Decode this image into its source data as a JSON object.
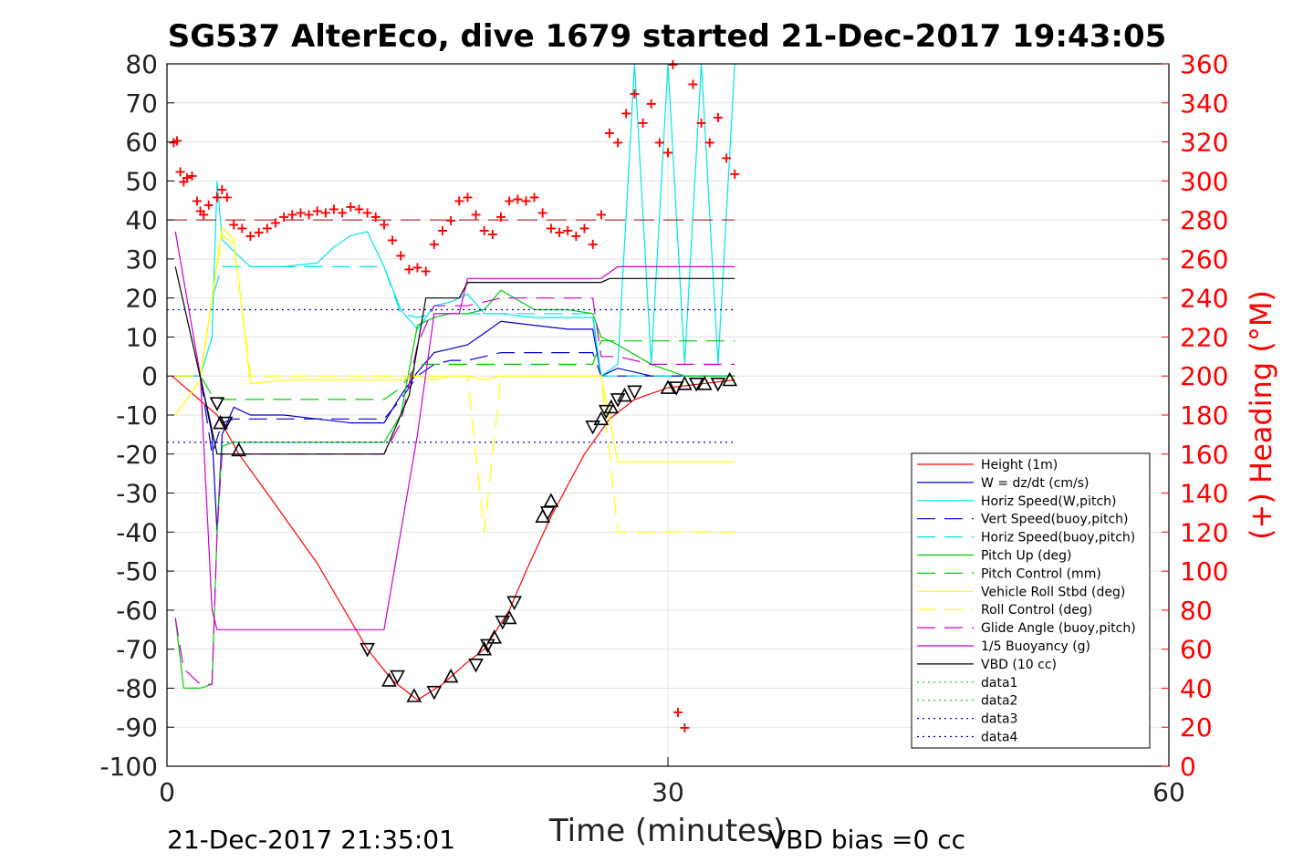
{
  "chart_data": {
    "type": "line",
    "title": "SG537 AlterEco, dive 1679 started 21-Dec-2017 19:43:05",
    "xlabel": "Time (minutes)",
    "ylabel_right": "(+) Heading (°M)",
    "xlim": [
      0,
      60
    ],
    "ylim": [
      -100,
      80
    ],
    "ylim_right": [
      0,
      360
    ],
    "x_ticks": [
      "0",
      "30",
      "60"
    ],
    "y_ticks": [
      "-100",
      "-90",
      "-80",
      "-70",
      "-60",
      "-50",
      "-40",
      "-30",
      "-20",
      "-10",
      "0",
      "10",
      "20",
      "30",
      "40",
      "50",
      "60",
      "70",
      "80"
    ],
    "y_right_ticks": [
      "0",
      "20",
      "40",
      "60",
      "80",
      "100",
      "120",
      "140",
      "160",
      "180",
      "200",
      "220",
      "240",
      "260",
      "280",
      "300",
      "320",
      "340",
      "360"
    ],
    "footer_left": "21-Dec-2017 21:35:01",
    "footer_right": "VBD bias =0 cc",
    "legend_position": "lower-right",
    "colors": {
      "height": "#ff0000",
      "w": "#0000cc",
      "horiz_w": "#00e5e5",
      "vert_buoy": "#0000cc",
      "horiz_buoy": "#00e5e5",
      "pitch_up": "#00cc00",
      "pitch_ctrl": "#00cc00",
      "roll": "#ffff00",
      "roll_ctrl": "#ffff00",
      "glide": "#cc00cc",
      "buoy": "#cc00cc",
      "vbd": "#000000",
      "data1": "#00cc00",
      "data2": "#00cc00",
      "data3": "#0000cc",
      "data4": "#0000cc",
      "heading": "#ff0000"
    },
    "series": [
      {
        "name": "Height (1m)",
        "key": "height",
        "style": "solid",
        "x": [
          0.3,
          3.0,
          4.3,
          6.0,
          9.0,
          12.0,
          13.5,
          15.0,
          16.5,
          17.8,
          19.0,
          20.5,
          21.5,
          23.0,
          25.0,
          26.5,
          28.0,
          30.0,
          32.0,
          34.0
        ],
        "y": [
          0,
          -10,
          -20,
          -30,
          -48,
          -70,
          -78,
          -83,
          -79,
          -74,
          -70,
          -60,
          -50,
          -36,
          -20,
          -11,
          -6,
          -3,
          -2,
          -1
        ]
      },
      {
        "name": "W = dz/dt (cm/s)",
        "key": "w",
        "style": "solid",
        "x": [
          0.5,
          2.0,
          2.7,
          3.0,
          3.3,
          4.0,
          5.0,
          7.0,
          9.0,
          11.0,
          13.0,
          14.0,
          15.0,
          16.0,
          17.0,
          18.0,
          19.0,
          20.0,
          22.0,
          24.0,
          25.5,
          26.0,
          27.0,
          29.0,
          31.0,
          34.0
        ],
        "y": [
          0,
          0,
          -15,
          -40,
          -15,
          -8,
          -10,
          -10,
          -11,
          -12,
          -12,
          -5,
          1,
          6,
          7,
          8,
          11,
          14,
          13,
          12,
          12,
          0,
          2,
          0,
          0,
          0
        ]
      },
      {
        "name": "Horiz Speed(W,pitch)",
        "key": "horiz_w",
        "style": "solid",
        "x": [
          0.5,
          2.0,
          2.7,
          3.0,
          3.3,
          4.0,
          5.0,
          7.0,
          9.0,
          10.0,
          11.0,
          12.0,
          13.0,
          14.0,
          15.0,
          16.0,
          17.0,
          18.0,
          19.0,
          20.0,
          22.0,
          24.0,
          25.5,
          26.0,
          27.0,
          28.0,
          29.0,
          30.0,
          31.0,
          32.0,
          33.0,
          34.0
        ],
        "y": [
          0,
          0,
          10,
          50,
          35,
          32,
          28,
          28,
          29,
          33,
          36,
          37,
          28,
          17,
          12,
          18,
          19,
          21,
          16,
          16,
          15,
          15,
          15,
          0,
          3,
          80,
          3,
          80,
          3,
          80,
          3,
          80
        ]
      },
      {
        "name": "Vert Speed(buoy,pitch)",
        "key": "vert_buoy",
        "style": "dashed",
        "x": [
          0.5,
          2.0,
          2.7,
          3.3,
          4.0,
          7.0,
          11.0,
          13.0,
          14.0,
          15.0,
          16.0,
          17.0,
          18.0,
          19.0,
          20.0,
          24.0,
          25.5,
          26.0,
          34.0
        ],
        "y": [
          0,
          0,
          -20,
          -12,
          -11,
          -11,
          -11,
          -11,
          -6,
          0,
          3,
          4,
          4,
          5,
          6,
          6,
          6,
          0,
          0
        ]
      },
      {
        "name": "Horiz Speed(buoy,pitch)",
        "key": "horiz_buoy",
        "style": "dashed",
        "x": [
          0.5,
          2.0,
          2.7,
          3.3,
          4.0,
          7.0,
          11.0,
          13.0,
          14.0,
          15.0,
          16.0,
          18.0,
          20.0,
          24.0,
          25.5,
          26.0,
          34.0
        ],
        "y": [
          0,
          0,
          20,
          28,
          28,
          28,
          28,
          28,
          16,
          15,
          16,
          16,
          16,
          16,
          16,
          0,
          0
        ]
      },
      {
        "name": "Pitch Up (deg)",
        "key": "pitch_up",
        "style": "solid",
        "x": [
          0.5,
          1.0,
          2.0,
          2.7,
          3.0,
          3.3,
          4.0,
          7.0,
          11.0,
          13.0,
          14.0,
          15.0,
          16.0,
          17.0,
          18.0,
          19.0,
          20.0,
          22.0,
          24.0,
          25.5,
          26.0,
          27.0,
          29.0,
          31.0,
          34.0
        ],
        "y": [
          -62,
          -80,
          -80,
          -79,
          -40,
          -18,
          -17,
          -17,
          -17,
          -17,
          -10,
          13,
          15,
          16,
          16,
          17,
          22,
          17,
          17,
          16,
          10,
          8,
          3,
          0,
          0
        ]
      },
      {
        "name": "Pitch Control (mm)",
        "key": "pitch_ctrl",
        "style": "dashed",
        "x": [
          0.5,
          2.0,
          2.7,
          3.3,
          4.0,
          7.0,
          11.0,
          13.0,
          14.0,
          15.0,
          17.0,
          20.0,
          25.5,
          26.0,
          34.0
        ],
        "y": [
          0,
          0,
          -5,
          -6,
          -6,
          -6,
          -6,
          -6,
          -3,
          3,
          3,
          3,
          3,
          9,
          9
        ]
      },
      {
        "name": "Vehicle Roll Stbd (deg)",
        "key": "roll",
        "style": "solid",
        "x": [
          0.5,
          2.0,
          2.7,
          3.3,
          4.0,
          5.0,
          7.0,
          11.0,
          13.0,
          14.0,
          15.0,
          16.0,
          17.0,
          18.0,
          19.0,
          20.0,
          22.0,
          24.0,
          25.5,
          26.0,
          27.0,
          29.0,
          31.0,
          34.0
        ],
        "y": [
          -10,
          -1,
          20,
          38,
          35,
          -2,
          -1,
          -1,
          -1,
          -1,
          0,
          -1,
          0,
          0,
          -1,
          0,
          0,
          0,
          0,
          0,
          -22,
          -22,
          -22,
          -22
        ]
      },
      {
        "name": "Roll Control (deg)",
        "key": "roll_ctrl",
        "style": "dashed",
        "x": [
          0.5,
          2.0,
          2.7,
          3.3,
          4.0,
          5.0,
          13.0,
          14.0,
          18.0,
          19.0,
          20.0,
          25.5,
          26.0,
          27.0,
          34.0
        ],
        "y": [
          0,
          0,
          20,
          36,
          34,
          0,
          0,
          0,
          0,
          -40,
          0,
          0,
          0,
          -40,
          -40
        ]
      },
      {
        "name": "Glide Angle (buoy,pitch)",
        "key": "glide",
        "style": "dashed",
        "x": [
          0.5,
          1.0,
          2.0,
          2.7,
          3.0,
          3.3,
          4.0,
          7.0,
          11.0,
          13.0,
          14.0,
          15.0,
          16.0,
          17.0,
          18.0,
          19.0,
          20.0,
          22.0,
          24.0,
          25.5,
          26.0,
          27.0,
          29.0,
          31.0,
          34.0
        ],
        "y": [
          -62,
          -75,
          -79,
          -79,
          -40,
          -20,
          -20,
          -20,
          -20,
          -20,
          -12,
          8,
          18,
          18,
          18,
          19,
          20,
          20,
          20,
          20,
          5,
          5,
          3,
          3,
          3
        ]
      },
      {
        "name": "1/5 Buoyancy (g)",
        "key": "buoy",
        "style": "solid",
        "x": [
          0.5,
          2.0,
          2.7,
          3.0,
          13.0,
          15.0,
          16.0,
          17.5,
          18.0,
          26.0,
          27.0,
          34.0
        ],
        "y": [
          37,
          0,
          -60,
          -65,
          -65,
          -15,
          16,
          16,
          25,
          25,
          28,
          28
        ]
      },
      {
        "name": "VBD (10 cc)",
        "key": "vbd",
        "style": "solid",
        "x": [
          0.5,
          2.5,
          3.0,
          13.0,
          14.5,
          15.5,
          17.5,
          18.0,
          26.0,
          26.5,
          34.0
        ],
        "y": [
          28,
          -10,
          -20,
          -20,
          -5,
          20,
          20,
          24,
          24,
          25,
          25
        ]
      },
      {
        "name": "data1",
        "key": "data1",
        "style": "dotted",
        "x": [],
        "y": []
      },
      {
        "name": "data2",
        "key": "data2",
        "style": "dotted",
        "x": [],
        "y": []
      },
      {
        "name": "data3",
        "key": "data3",
        "style": "dotted",
        "x": [
          0,
          34
        ],
        "y": [
          17,
          17
        ]
      },
      {
        "name": "data4",
        "key": "data4",
        "style": "dotted",
        "x": [
          0,
          34
        ],
        "y": [
          -17,
          -17
        ]
      }
    ],
    "heading_ref": {
      "x": [
        0,
        34
      ],
      "y": [
        280,
        280
      ]
    },
    "heading": {
      "x": [
        0.4,
        0.6,
        0.8,
        1.0,
        1.2,
        1.5,
        1.8,
        2.0,
        2.2,
        2.5,
        3.0,
        3.3,
        3.6,
        4.0,
        4.5,
        5.0,
        5.5,
        6.0,
        6.5,
        7.0,
        7.5,
        8.0,
        8.5,
        9.0,
        9.5,
        10.0,
        10.5,
        11.0,
        11.5,
        12.0,
        12.5,
        13.0,
        13.5,
        14.0,
        14.5,
        15.0,
        15.5,
        16.0,
        16.5,
        17.0,
        17.5,
        18.0,
        18.5,
        19.0,
        19.5,
        20.0,
        20.5,
        21.0,
        21.5,
        22.0,
        22.5,
        23.0,
        23.5,
        24.0,
        24.5,
        25.0,
        25.5,
        26.0,
        26.5,
        27.0,
        27.5,
        28.0,
        28.5,
        29.0,
        29.5,
        30.0,
        30.3,
        30.6,
        31.0,
        31.5,
        32.0,
        32.5,
        33.0,
        33.5,
        34.0
      ],
      "y": [
        320,
        321,
        305,
        300,
        302,
        303,
        290,
        285,
        283,
        288,
        292,
        296,
        292,
        278,
        276,
        272,
        274,
        276,
        279,
        282,
        283,
        284,
        283,
        285,
        284,
        286,
        284,
        287,
        286,
        284,
        282,
        278,
        270,
        262,
        255,
        256,
        254,
        268,
        275,
        280,
        290,
        292,
        283,
        275,
        273,
        282,
        290,
        291,
        290,
        292,
        284,
        276,
        274,
        275,
        272,
        276,
        268,
        283,
        325,
        320,
        335,
        345,
        330,
        340,
        320,
        315,
        360,
        28,
        20,
        350,
        330,
        320,
        333,
        312,
        304
      ]
    },
    "markers": {
      "x": [
        3.0,
        3.2,
        3.5,
        4.3,
        12.0,
        13.3,
        13.8,
        14.8,
        16.0,
        17.0,
        18.5,
        19.0,
        19.2,
        19.6,
        20.1,
        20.5,
        20.8,
        22.5,
        22.8,
        23.0,
        25.5,
        26.0,
        26.3,
        26.6,
        27.0,
        27.4,
        28.0,
        30.0,
        30.5,
        31.0,
        31.7,
        32.2,
        33.0,
        33.7
      ],
      "y": [
        -7,
        -12,
        -12,
        -19,
        -70,
        -78,
        -77,
        -82,
        -81,
        -77,
        -74,
        -70,
        -69,
        -67,
        -63,
        -62,
        -58,
        -36,
        -35,
        -32,
        -13,
        -11,
        -9,
        -8,
        -6,
        -5,
        -4,
        -3,
        -3,
        -2,
        -2,
        -2,
        -2,
        -1
      ]
    }
  }
}
